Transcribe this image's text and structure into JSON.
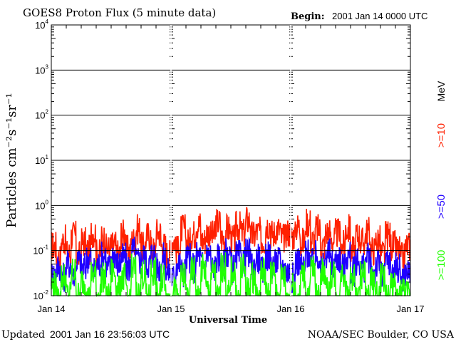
{
  "chart_data": {
    "type": "line",
    "title": "GOES8 Proton Flux (5 minute data)",
    "begin_label": "Begin:",
    "begin_value": "2001 Jan 14 0000 UTC",
    "xlabel": "Universal Time",
    "ylabel": "Particles cm⁻²s⁻¹sr⁻¹",
    "y_scale": "log",
    "ylim": [
      0.01,
      10000
    ],
    "xlim_hours": [
      0,
      72
    ],
    "x_tick_labels": [
      "Jan 14",
      "Jan 15",
      "Jan 16",
      "Jan 17"
    ],
    "y_tick_labels": [
      {
        "base": "10",
        "exp": "4",
        "value": 10000
      },
      {
        "base": "10",
        "exp": "3",
        "value": 1000
      },
      {
        "base": "10",
        "exp": "2",
        "value": 100
      },
      {
        "base": "10",
        "exp": "1",
        "value": 10
      },
      {
        "base": "10",
        "exp": "0",
        "value": 1
      },
      {
        "base": "10",
        "exp": "-1",
        "value": 0.1
      },
      {
        "base": "10",
        "exp": "-2",
        "value": 0.01
      }
    ],
    "grid": "horizontal at decades",
    "unit_label": "MeV",
    "series": [
      {
        "name": ">=10",
        "color": "#ff2000",
        "values": [
          0.15,
          0.08,
          0.2,
          0.1,
          0.25,
          0.09,
          0.18,
          0.12,
          0.3,
          0.1,
          0.22,
          0.13,
          0.15,
          0.1,
          0.28,
          0.12,
          0.2,
          0.35,
          0.14,
          0.25,
          0.12,
          0.3,
          0.15,
          0.1,
          0.2,
          0.12,
          0.35,
          0.18,
          0.28,
          0.45,
          0.2,
          0.3,
          0.25,
          0.5,
          0.22,
          0.35,
          0.2,
          0.4,
          0.28,
          0.55,
          0.25,
          0.3,
          0.2,
          0.45,
          0.28,
          0.35,
          0.22,
          0.3,
          0.25,
          0.4,
          0.18,
          0.5,
          0.2,
          0.35,
          0.15,
          0.3,
          0.2,
          0.28,
          0.15,
          0.35,
          0.12,
          0.25,
          0.18,
          0.3,
          0.12,
          0.2,
          0.1,
          0.25,
          0.15,
          0.12,
          0.08,
          0.15
        ]
      },
      {
        "name": ">=50",
        "color": "#2000ff",
        "values": [
          0.035,
          0.05,
          0.03,
          0.06,
          0.04,
          0.07,
          0.05,
          0.08,
          0.04,
          0.06,
          0.09,
          0.05,
          0.1,
          0.06,
          0.08,
          0.05,
          0.12,
          0.07,
          0.09,
          0.06,
          0.1,
          0.05,
          0.08,
          0.04,
          0.03,
          0.06,
          0.04,
          0.08,
          0.05,
          0.09,
          0.06,
          0.1,
          0.05,
          0.08,
          0.06,
          0.11,
          0.05,
          0.09,
          0.07,
          0.1,
          0.05,
          0.08,
          0.04,
          0.09,
          0.06,
          0.07,
          0.05,
          0.04,
          0.03,
          0.07,
          0.05,
          0.1,
          0.06,
          0.09,
          0.05,
          0.1,
          0.06,
          0.08,
          0.05,
          0.09,
          0.04,
          0.07,
          0.05,
          0.08,
          0.04,
          0.06,
          0.03,
          0.07,
          0.04,
          0.05,
          0.03,
          0.04
        ]
      },
      {
        "name": ">=100",
        "color": "#20ff00",
        "values": [
          0.02,
          0.01,
          0.03,
          0.012,
          0.04,
          0.011,
          0.025,
          0.01,
          0.035,
          0.012,
          0.03,
          0.01,
          0.04,
          0.015,
          0.03,
          0.01,
          0.045,
          0.012,
          0.035,
          0.01,
          0.04,
          0.011,
          0.03,
          0.01,
          0.015,
          0.01,
          0.03,
          0.012,
          0.04,
          0.01,
          0.045,
          0.015,
          0.035,
          0.01,
          0.05,
          0.012,
          0.04,
          0.01,
          0.045,
          0.015,
          0.03,
          0.01,
          0.04,
          0.012,
          0.035,
          0.01,
          0.03,
          0.01,
          0.02,
          0.01,
          0.035,
          0.012,
          0.045,
          0.01,
          0.04,
          0.015,
          0.035,
          0.01,
          0.04,
          0.012,
          0.03,
          0.01,
          0.035,
          0.01,
          0.025,
          0.011,
          0.03,
          0.01,
          0.02,
          0.01,
          0.015,
          0.012
        ]
      }
    ]
  },
  "footer": {
    "updated_label": "Updated",
    "updated_value": "2001 Jan 16 23:56:03 UTC",
    "credit": "NOAA/SEC Boulder, CO USA"
  }
}
